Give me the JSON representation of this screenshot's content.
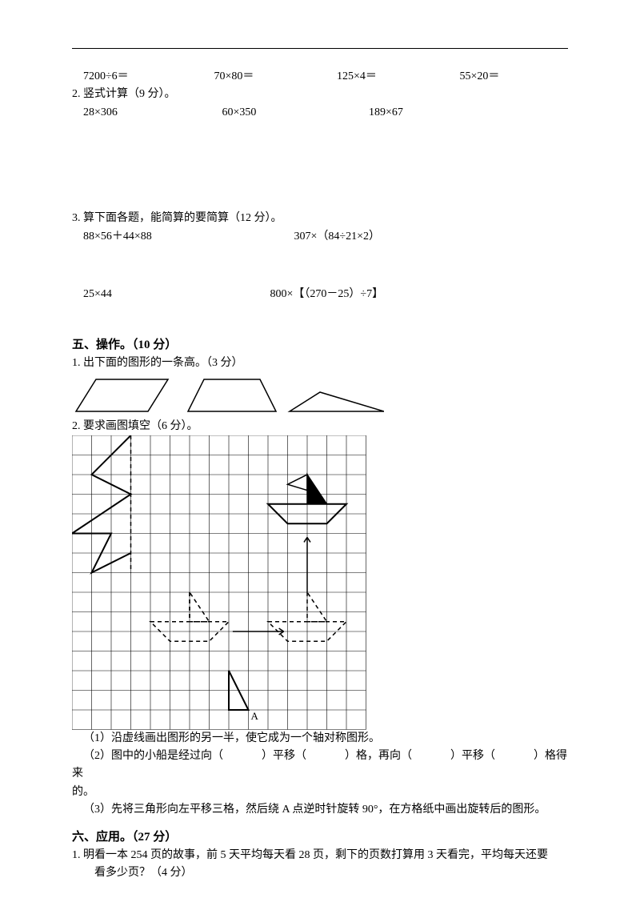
{
  "q1": {
    "items": [
      "7200÷6＝",
      "70×80＝",
      "125×4＝",
      "55×20＝"
    ]
  },
  "q2": {
    "title": "2. 竖式计算（9 分）。",
    "items": [
      "28×306",
      "60×350",
      "189×67"
    ]
  },
  "q3": {
    "title": "3. 算下面各题，能简算的要简算（12 分）。",
    "rowA": [
      "88×56＋44×88",
      "307×（84÷21×2）"
    ],
    "rowB": [
      "25×44",
      "800×【（270－25）÷7】"
    ]
  },
  "sec5": {
    "heading": "五、操作。（10 分）",
    "p1": "1. 出下面的图形的一条高。（3 分）",
    "p2": "2. 要求画图填空（6 分）。",
    "sub1": "（1）沿虚线画出图形的另一半，使它成为一个轴对称图形。",
    "sub2_a": "（2）图中的小船是经过向（",
    "sub2_b": "）平移（",
    "sub2_c": "）格，再向（",
    "sub2_d": "）平移（",
    "sub2_e": "）格得来",
    "sub2_f": "的。",
    "sub3": "（3）先将三角形向左平移三格，然后绕 A 点逆时针旋转 90°，在方格纸中画出旋转后的图形。",
    "label_A": "A"
  },
  "sec6": {
    "heading": "六、应用。（27 分）",
    "p1a": "1. 明看一本 254 页的故事，前 5 天平均每天看 28 页，剩下的页数打算用 3 天看完，平均每天还要",
    "p1b": "看多少页？（4 分）"
  },
  "svg": {
    "shapes_width": 390,
    "shapes_height": 56,
    "stroke": "#000000",
    "grid_size": 370,
    "cell": 24.5,
    "cols": 15,
    "rows": 15
  }
}
